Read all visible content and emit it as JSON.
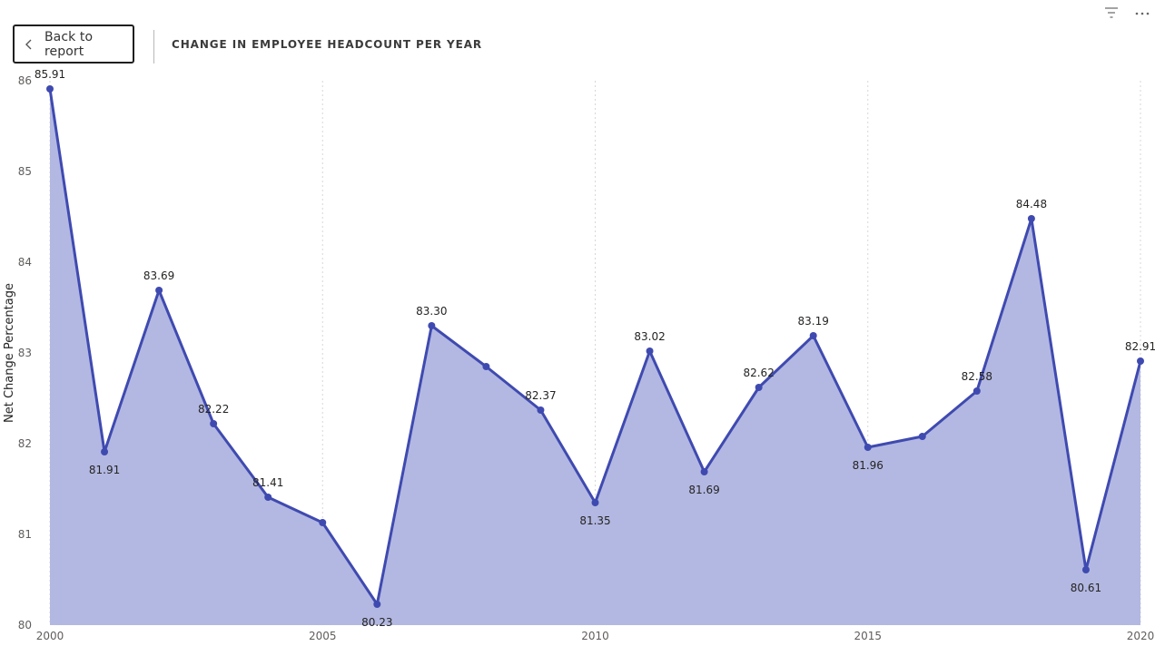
{
  "header": {
    "back_label": "Back to report",
    "title": "CHANGE IN EMPLOYEE HEADCOUNT PER YEAR"
  },
  "icons": {
    "back": "chevron-left-icon",
    "filter": "filter-lines-icon",
    "more": "more-options-icon"
  },
  "colors": {
    "line": "#3f4ab0",
    "area": "#b3b8e2",
    "grid": "#d7d7d7"
  },
  "chart_data": {
    "type": "area",
    "title": "",
    "xlabel": "",
    "ylabel": "Net Change Percentage",
    "x": [
      2000,
      2001,
      2002,
      2003,
      2004,
      2005,
      2006,
      2007,
      2008,
      2009,
      2010,
      2011,
      2012,
      2013,
      2014,
      2015,
      2016,
      2017,
      2018,
      2019,
      2020
    ],
    "values": [
      85.91,
      81.91,
      83.69,
      82.22,
      81.41,
      81.13,
      80.23,
      83.3,
      82.85,
      82.37,
      81.35,
      83.02,
      81.69,
      82.62,
      83.19,
      81.96,
      82.08,
      82.58,
      84.48,
      80.61,
      82.91
    ],
    "data_labels": [
      "85.91",
      "81.91",
      "83.69",
      "82.22",
      "81.41",
      "",
      "80.23",
      "83.30",
      "",
      "82.37",
      "81.35",
      "83.02",
      "81.69",
      "82.62",
      "83.19",
      "81.96",
      "",
      "82.58",
      "84.48",
      "80.61",
      "82.91"
    ],
    "label_below": [
      false,
      true,
      false,
      false,
      false,
      false,
      true,
      false,
      false,
      false,
      true,
      false,
      true,
      false,
      false,
      true,
      false,
      false,
      false,
      true,
      false
    ],
    "xlim": [
      2000,
      2020
    ],
    "ylim": [
      80,
      86
    ],
    "x_ticks": [
      "2000",
      "2005",
      "2010",
      "2015",
      "2020"
    ],
    "y_ticks": [
      "80",
      "81",
      "82",
      "83",
      "84",
      "85",
      "86"
    ],
    "grid": "vertical dotted"
  }
}
